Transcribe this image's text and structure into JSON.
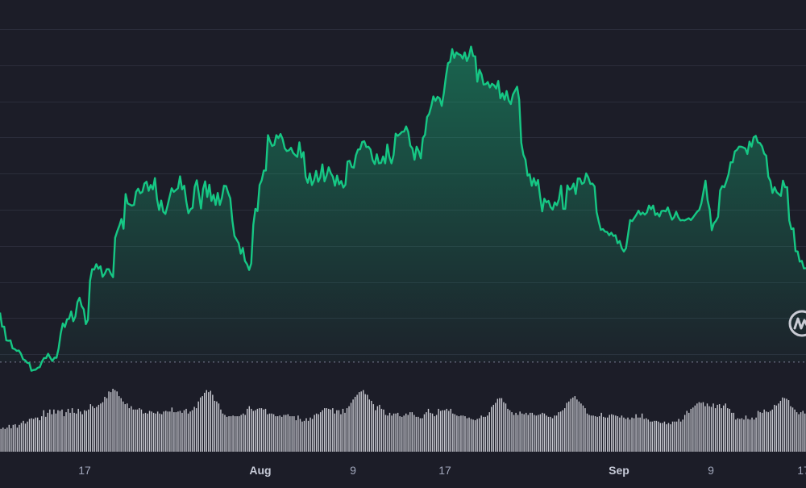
{
  "theme": {
    "background": "#1c1d28",
    "grid": "#2b2d3b",
    "up_color": "#16c784",
    "down_color": "#ea3943",
    "volume_bar": "#d6d7de",
    "label_color": "#a1a7bb",
    "baseline_color": "#7c8096"
  },
  "watermark": {
    "icon": "coinmarketcap-logo-icon"
  },
  "chart_data": {
    "type": "area",
    "x_tick_labels": [
      {
        "text": "17",
        "pos": 0.105,
        "bold": false
      },
      {
        "text": "Aug",
        "pos": 0.323,
        "bold": true
      },
      {
        "text": "9",
        "pos": 0.438,
        "bold": false
      },
      {
        "text": "17",
        "pos": 0.552,
        "bold": false
      },
      {
        "text": "Sep",
        "pos": 0.768,
        "bold": true
      },
      {
        "text": "9",
        "pos": 0.882,
        "bold": false
      },
      {
        "text": "17",
        "pos": 0.997,
        "bold": false
      }
    ],
    "price_series": {
      "name": "",
      "ylim": [
        0,
        100
      ],
      "baseline": 6.5,
      "grid_lines": 10,
      "values": [
        20.2,
        16.3,
        16.3,
        12.5,
        12.4,
        12.5,
        10.3,
        10.1,
        9.6,
        9.7,
        8.8,
        7.3,
        7.0,
        6.3,
        6.2,
        4.1,
        4.3,
        4.4,
        4.9,
        5.1,
        6.6,
        7.6,
        7.6,
        8.8,
        7.7,
        6.8,
        7.7,
        7.7,
        10.3,
        14.4,
        17.2,
        16.2,
        18.3,
        18.5,
        20.5,
        17.8,
        19.1,
        23.1,
        24.3,
        22.0,
        21.1,
        17.0,
        18.2,
        29.0,
        32.2,
        32.1,
        33.6,
        32.3,
        33.0,
        30.1,
        30.9,
        32.2,
        32.2,
        30.9,
        30.0,
        40.9,
        42.7,
        44.2,
        46.1,
        43.4,
        53.0,
        50.4,
        50.1,
        49.8,
        50.0,
        53.6,
        54.5,
        53.2,
        53.6,
        55.9,
        56.4,
        53.9,
        55.5,
        54.3,
        57.4,
        51.6,
        48.6,
        51.2,
        48.1,
        47.5,
        49.7,
        52.2,
        54.6,
        53.6,
        54.1,
        54.6,
        57.9,
        54.3,
        55.3,
        50.9,
        47.7,
        48.8,
        49.2,
        55.0,
        56.8,
        53.0,
        49.0,
        54.4,
        56.5,
        52.2,
        55.6,
        51.1,
        52.8,
        50.0,
        53.3,
        50.0,
        52.0,
        55.3,
        55.2,
        53.3,
        51.8,
        45.6,
        41.4,
        40.4,
        39.4,
        36.5,
        38.1,
        34.5,
        33.6,
        32.0,
        33.8,
        44.5,
        48.9,
        48.3,
        55.5,
        56.8,
        59.5,
        59.5,
        69.3,
        67.6,
        66.3,
        66.6,
        69.3,
        68.5,
        69.6,
        68.2,
        65.7,
        64.9,
        65.1,
        65.8,
        64.4,
        63.8,
        63.3,
        67.3,
        63.1,
        64.6,
        57.8,
        56.1,
        58.7,
        55.5,
        56.8,
        59.4,
        56.4,
        57.7,
        61.2,
        56.5,
        58.1,
        60.4,
        58.8,
        57.8,
        55.3,
        58.1,
        55.7,
        56.6,
        54.8,
        55.6,
        62.0,
        62.2,
        60.5,
        60.3,
        63.7,
        65.3,
        65.4,
        67.4,
        67.6,
        66.0,
        66.1,
        65.3,
        62.4,
        61.3,
        64.0,
        61.5,
        61.6,
        63.4,
        61.5,
        66.7,
        63.3,
        61.5,
        63.8,
        69.7,
        69.1,
        69.6,
        70.2,
        70.3,
        71.7,
        70.2,
        66.4,
        65.6,
        62.5,
        66.1,
        64.9,
        62.9,
        68.5,
        69.4,
        74.3,
        75.2,
        77.3,
        80.0,
        78.8,
        79.9,
        79.5,
        77.4,
        80.9,
        85.5,
        89.2,
        89.6,
        93.1,
        90.7,
        92.2,
        91.7,
        91.5,
        90.5,
        92.2,
        89.8,
        91.2,
        93.8,
        91.2,
        91.1,
        84.1,
        87.4,
        86.1,
        83.3,
        83.4,
        84.0,
        82.5,
        83.5,
        83.1,
        82.2,
        84.3,
        79.5,
        80.9,
        79.1,
        81.5,
        78.9,
        77.9,
        80.5,
        81.6,
        82.7,
        79.1,
        67.2,
        63.9,
        62.5,
        58.1,
        58.5,
        55.3,
        57.4,
        55.4,
        56.9,
        52.3,
        48.2,
        51.7,
        50.7,
        51.1,
        49.4,
        48.7,
        50.7,
        49.9,
        51.6,
        55.3,
        48.9,
        48.9,
        55.4,
        54.2,
        54.6,
        55.9,
        53.0,
        57.3,
        57.3,
        55.8,
        56.2,
        58.7,
        57.6,
        55.8,
        55.9,
        55.1,
        48.0,
        45.4,
        43.1,
        43.3,
        42.6,
        42.5,
        41.6,
        42.3,
        41.4,
        41.6,
        39.4,
        40.0,
        38.0,
        37.1,
        38.0,
        41.8,
        45.8,
        45.5,
        46.4,
        47.3,
        48.4,
        47.3,
        47.9,
        47.3,
        47.9,
        49.8,
        48.8,
        49.8,
        47.2,
        47.7,
        46.8,
        48.3,
        48.4,
        48.2,
        49.3,
        47.5,
        45.9,
        46.6,
        48.1,
        46.6,
        45.7,
        45.8,
        45.7,
        46.0,
        46.3,
        45.8,
        46.5,
        47.3,
        48.1,
        48.6,
        50.4,
        53.6,
        56.7,
        51.3,
        48.7,
        43.0,
        44.9,
        45.6,
        46.7,
        54.0,
        55.2,
        54.9,
        56.6,
        58.5,
        61.8,
        61.8,
        64.8,
        65.2,
        66.1,
        66.1,
        65.9,
        65.6,
        64.1,
        67.5,
        66.1,
        68.7,
        69.1,
        67.3,
        67.1,
        66.2,
        64.2,
        63.6,
        57.8,
        56.6,
        53.3,
        54.9,
        53.5,
        53.0,
        52.5,
        56.7,
        54.9,
        54.9,
        45.7,
        43.3,
        43.5,
        37.2,
        37.1,
        34.3,
        34.5,
        32.4,
        32.5
      ]
    },
    "volume_series": {
      "ylim": [
        0,
        100
      ],
      "values": [
        34,
        36,
        34,
        36,
        40,
        35,
        40,
        41,
        36,
        40,
        43,
        46,
        42,
        45,
        49,
        50,
        49,
        51,
        51,
        47,
        53,
        62,
        52,
        58,
        63,
        56,
        63,
        57,
        62,
        61,
        63,
        53,
        59,
        64,
        58,
        65,
        58,
        57,
        64,
        60,
        56,
        62,
        61,
        63,
        71,
        68,
        65,
        67,
        70,
        72,
        74,
        82,
        80,
        90,
        89,
        94,
        92,
        90,
        83,
        80,
        75,
        71,
        72,
        65,
        68,
        63,
        63,
        63,
        65,
        63,
        57,
        58,
        57,
        61,
        60,
        58,
        57,
        60,
        57,
        56,
        60,
        61,
        60,
        60,
        66,
        59,
        59,
        60,
        61,
        58,
        62,
        64,
        57,
        60,
        62,
        67,
        65,
        75,
        81,
        83,
        88,
        92,
        89,
        91,
        85,
        76,
        75,
        72,
        63,
        57,
        55,
        52,
        53,
        53,
        54,
        53,
        53,
        53,
        55,
        57,
        55,
        64,
        68,
        64,
        61,
        62,
        64,
        65,
        65,
        63,
        64,
        56,
        57,
        57,
        56,
        53,
        53,
        54,
        52,
        55,
        55,
        56,
        53,
        53,
        53,
        47,
        54,
        49,
        45,
        46,
        50,
        46,
        51,
        49,
        55,
        57,
        56,
        59,
        62,
        65,
        65,
        64,
        63,
        65,
        57,
        62,
        62,
        56,
        64,
        58,
        65,
        68,
        73,
        78,
        82,
        85,
        89,
        90,
        92,
        86,
        85,
        78,
        76,
        71,
        62,
        68,
        70,
        64,
        63,
        55,
        54,
        58,
        54,
        57,
        57,
        58,
        53,
        52,
        54,
        57,
        55,
        59,
        59,
        55,
        52,
        52,
        50,
        50,
        56,
        59,
        64,
        58,
        57,
        53,
        55,
        64,
        61,
        62,
        62,
        64,
        61,
        64,
        57,
        56,
        54,
        53,
        54,
        54,
        53,
        50,
        51,
        49,
        48,
        47,
        49,
        50,
        54,
        52,
        52,
        54,
        59,
        67,
        70,
        73,
        79,
        80,
        80,
        74,
        72,
        64,
        62,
        59,
        55,
        58,
        55,
        60,
        57,
        56,
        58,
        55,
        58,
        58,
        55,
        54,
        55,
        56,
        58,
        57,
        54,
        52,
        52,
        50,
        54,
        54,
        59,
        60,
        62,
        65,
        73,
        75,
        79,
        81,
        83,
        78,
        75,
        72,
        69,
        65,
        57,
        55,
        54,
        54,
        53,
        52,
        53,
        58,
        52,
        51,
        51,
        55,
        56,
        55,
        54,
        53,
        51,
        54,
        51,
        49,
        51,
        48,
        51,
        50,
        56,
        51,
        51,
        57,
        49,
        50,
        48,
        45,
        45,
        46,
        46,
        45,
        43,
        43,
        45,
        41,
        43,
        41,
        45,
        45,
        45,
        49,
        45,
        48,
        55,
        61,
        58,
        64,
        66,
        69,
        72,
        74,
        73,
        74,
        68,
        72,
        68,
        67,
        72,
        65,
        70,
        71,
        65,
        69,
        72,
        65,
        64,
        58,
        58,
        48,
        50,
        49,
        50,
        48,
        54,
        49,
        48,
        51,
        48,
        51,
        61,
        59,
        58,
        63,
        60,
        59,
        61,
        63,
        70,
        69,
        72,
        76,
        81,
        80,
        79,
        77,
        68,
        66,
        63,
        59,
        56,
        59,
        61,
        57
      ]
    }
  }
}
